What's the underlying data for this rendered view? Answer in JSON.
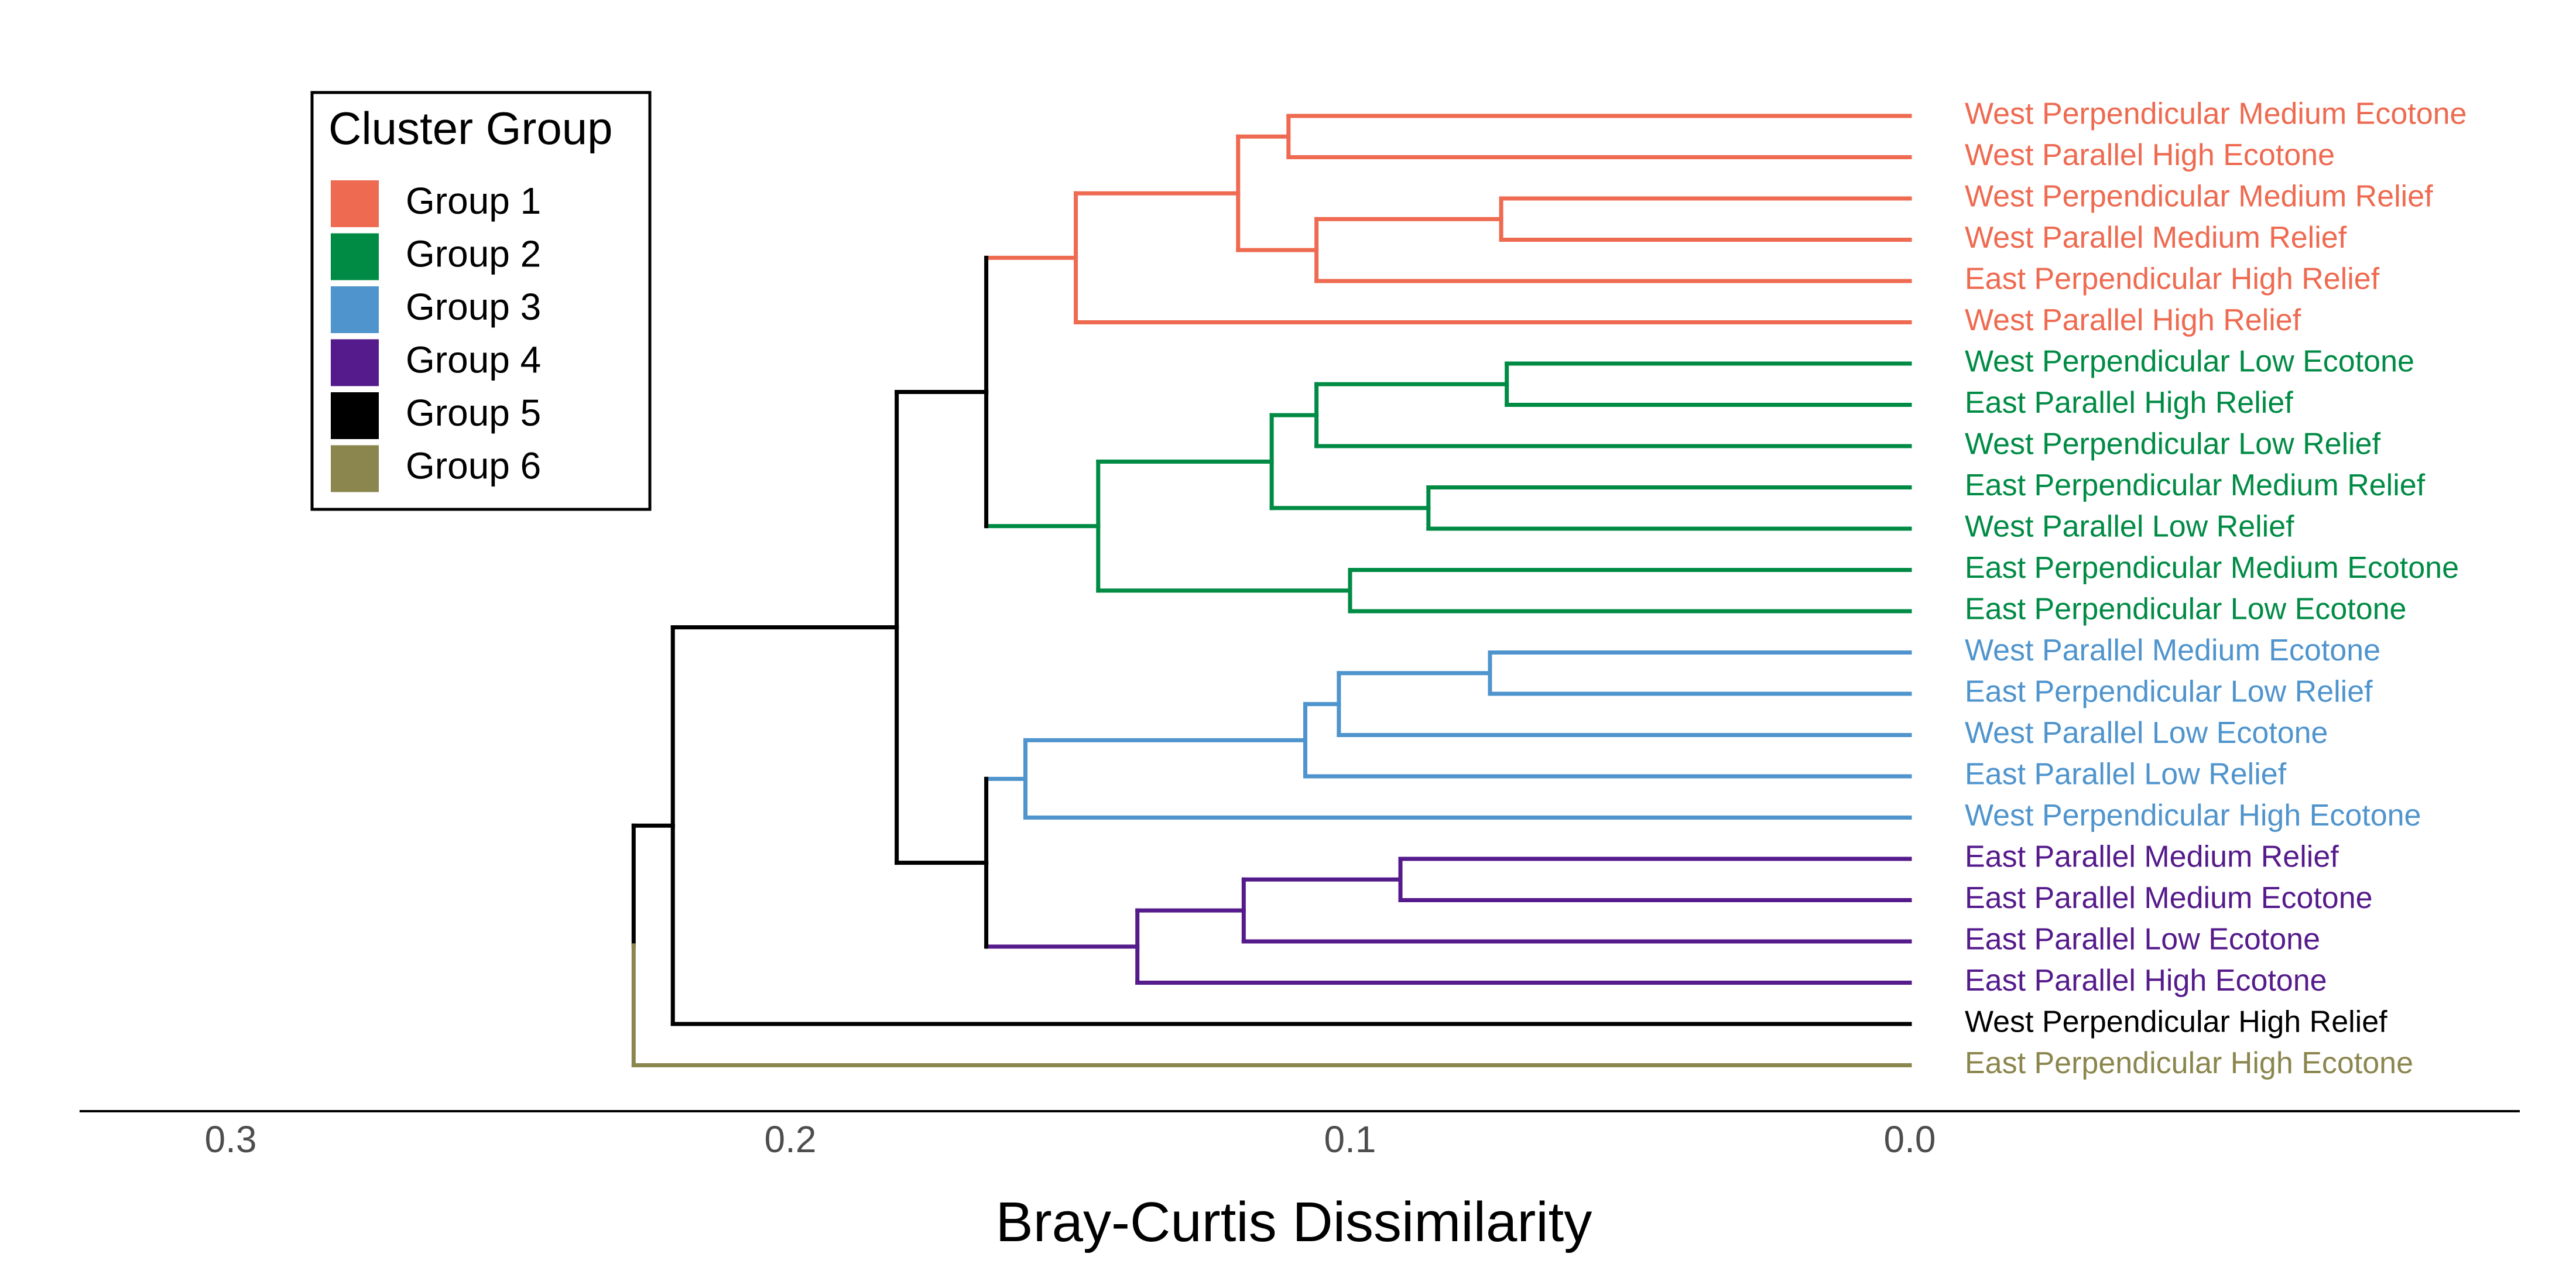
{
  "chart_data": {
    "type": "dendrogram",
    "xlabel": "Bray-Curtis Dissimilarity",
    "x_direction": "reversed",
    "xlim": [
      0.327,
      -0.109
    ],
    "x_ticks": [
      {
        "value": 0.3,
        "label": "0.3"
      },
      {
        "value": 0.2,
        "label": "0.2"
      },
      {
        "value": 0.1,
        "label": "0.1"
      },
      {
        "value": 0.0,
        "label": "0.0"
      }
    ],
    "legend": {
      "title": "Cluster Group",
      "placement": "top-left",
      "entries": [
        {
          "label": "Group 1",
          "group": 1
        },
        {
          "label": "Group 2",
          "group": 2
        },
        {
          "label": "Group 3",
          "group": 3
        },
        {
          "label": "Group 4",
          "group": 4
        },
        {
          "label": "Group 5",
          "group": 5
        },
        {
          "label": "Group 6",
          "group": 6
        }
      ]
    },
    "group_colors": {
      "1": "#EE6A50",
      "2": "#008B45",
      "3": "#4F94CD",
      "4": "#551A8B",
      "5": "#000000",
      "6": "#8B864E"
    },
    "trunk_color": "#000000",
    "leaves": [
      {
        "label": "West Perpendicular Medium Ecotone",
        "group": 1
      },
      {
        "label": "West Parallel High Ecotone",
        "group": 1
      },
      {
        "label": "West Perpendicular Medium Relief",
        "group": 1
      },
      {
        "label": "West Parallel Medium Relief",
        "group": 1
      },
      {
        "label": "East Perpendicular High Relief",
        "group": 1
      },
      {
        "label": "West Parallel High Relief",
        "group": 1
      },
      {
        "label": "West Perpendicular Low Ecotone",
        "group": 2
      },
      {
        "label": "East Parallel High Relief",
        "group": 2
      },
      {
        "label": "West Perpendicular Low Relief",
        "group": 2
      },
      {
        "label": "East Perpendicular Medium Relief",
        "group": 2
      },
      {
        "label": "West Parallel Low Relief",
        "group": 2
      },
      {
        "label": "East Perpendicular Medium Ecotone",
        "group": 2
      },
      {
        "label": "East Perpendicular Low Ecotone",
        "group": 2
      },
      {
        "label": "West Parallel Medium Ecotone",
        "group": 3
      },
      {
        "label": "East Perpendicular Low Relief",
        "group": 3
      },
      {
        "label": "West Parallel Low Ecotone",
        "group": 3
      },
      {
        "label": "East Parallel Low Relief",
        "group": 3
      },
      {
        "label": "West Perpendicular High Ecotone",
        "group": 3
      },
      {
        "label": "East Parallel Medium Relief",
        "group": 4
      },
      {
        "label": "East Parallel Medium Ecotone",
        "group": 4
      },
      {
        "label": "East Parallel Low Ecotone",
        "group": 4
      },
      {
        "label": "East Parallel High Ecotone",
        "group": 4
      },
      {
        "label": "West Perpendicular High Relief",
        "group": 5
      },
      {
        "label": "East Perpendicular High Ecotone",
        "group": 6
      }
    ],
    "merges": [
      {
        "id": "m1",
        "height": 0.111,
        "children": [
          0,
          1
        ],
        "group": 1
      },
      {
        "id": "m2",
        "height": 0.073,
        "children": [
          2,
          3
        ],
        "group": 1
      },
      {
        "id": "m3",
        "height": 0.106,
        "children": [
          "m2",
          4
        ],
        "group": 1
      },
      {
        "id": "m4",
        "height": 0.12,
        "children": [
          "m1",
          "m3"
        ],
        "group": 1
      },
      {
        "id": "m5",
        "height": 0.149,
        "children": [
          "m4",
          5
        ],
        "group": 1
      },
      {
        "id": "m6",
        "height": 0.072,
        "children": [
          6,
          7
        ],
        "group": 2
      },
      {
        "id": "m7",
        "height": 0.106,
        "children": [
          "m6",
          8
        ],
        "group": 2
      },
      {
        "id": "m8",
        "height": 0.086,
        "children": [
          9,
          10
        ],
        "group": 2
      },
      {
        "id": "m9",
        "height": 0.114,
        "children": [
          "m7",
          "m8"
        ],
        "group": 2
      },
      {
        "id": "m10",
        "height": 0.1,
        "children": [
          11,
          12
        ],
        "group": 2
      },
      {
        "id": "m11",
        "height": 0.145,
        "children": [
          "m9",
          "m10"
        ],
        "group": 2
      },
      {
        "id": "m12",
        "height": 0.165,
        "children": [
          "m5",
          "m11"
        ],
        "group": null
      },
      {
        "id": "m13",
        "height": 0.075,
        "children": [
          13,
          14
        ],
        "group": 3
      },
      {
        "id": "m14",
        "height": 0.102,
        "children": [
          "m13",
          15
        ],
        "group": 3
      },
      {
        "id": "m15",
        "height": 0.108,
        "children": [
          "m14",
          16
        ],
        "group": 3
      },
      {
        "id": "m16",
        "height": 0.158,
        "children": [
          "m15",
          17
        ],
        "group": 3
      },
      {
        "id": "m17",
        "height": 0.091,
        "children": [
          18,
          19
        ],
        "group": 4
      },
      {
        "id": "m18",
        "height": 0.119,
        "children": [
          "m17",
          20
        ],
        "group": 4
      },
      {
        "id": "m19",
        "height": 0.138,
        "children": [
          "m18",
          21
        ],
        "group": 4
      },
      {
        "id": "m20",
        "height": 0.165,
        "children": [
          "m16",
          "m19"
        ],
        "group": null
      },
      {
        "id": "m21",
        "height": 0.181,
        "children": [
          "m12",
          "m20"
        ],
        "group": null
      },
      {
        "id": "m22",
        "height": 0.221,
        "children": [
          "m21",
          22
        ],
        "group": null
      },
      {
        "id": "m23",
        "height": 0.228,
        "children": [
          "m22",
          23
        ],
        "group": null
      }
    ]
  }
}
